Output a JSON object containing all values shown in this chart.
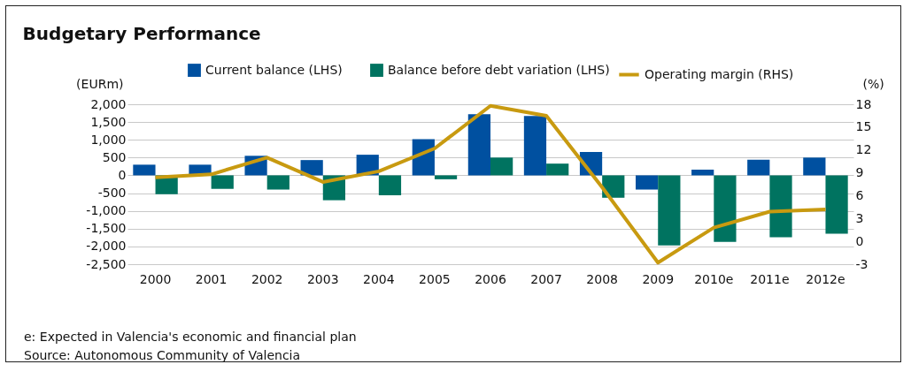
{
  "chart_data": {
    "type": "bar",
    "title": "Budgetary Performance",
    "ylabel": "(EURm)",
    "y2label": "(%)",
    "categories": [
      "2000",
      "2001",
      "2002",
      "2003",
      "2004",
      "2005",
      "2006",
      "2007",
      "2008",
      "2009",
      "2010e",
      "2011e",
      "2012e"
    ],
    "series": [
      {
        "name": "Current balance (LHS)",
        "color": "#0050a0",
        "values": [
          300,
          300,
          550,
          430,
          580,
          1020,
          1720,
          1670,
          660,
          -400,
          160,
          440,
          500
        ]
      },
      {
        "name": "Balance before debt variation (LHS)",
        "color": "#007360",
        "values": [
          -530,
          -380,
          -400,
          -700,
          -560,
          -110,
          500,
          330,
          -630,
          -1970,
          -1870,
          -1740,
          -1640
        ]
      },
      {
        "name": "Operating margin (RHS)",
        "type": "line",
        "axis": "y2",
        "color": "#c89a10",
        "values": [
          8.4,
          8.8,
          11.0,
          7.8,
          9.2,
          12.2,
          17.8,
          16.5,
          7.1,
          -2.8,
          1.8,
          3.9,
          4.2
        ]
      }
    ],
    "ylim": [
      -2500,
      2000
    ],
    "yticks": [
      {
        "value": -2500,
        "label": "-2,500"
      },
      {
        "value": -2000,
        "label": "-2,000"
      },
      {
        "value": -1500,
        "label": "-1,500"
      },
      {
        "value": -1000,
        "label": "-1,000"
      },
      -500,
      0,
      500,
      {
        "value": 1000,
        "label": "1,000"
      },
      {
        "value": 1500,
        "label": "1,500"
      },
      {
        "value": 2000,
        "label": "2,000"
      }
    ],
    "y2lim": [
      -3,
      18
    ],
    "y2ticks": [
      -3,
      0,
      3,
      6,
      9,
      12,
      15,
      18
    ],
    "grid": "y",
    "legend": "top",
    "marker": "none",
    "annotations": [
      "e: Expected in Valencia's economic and financial plan",
      "Source: Autonomous Community of Valencia"
    ]
  }
}
